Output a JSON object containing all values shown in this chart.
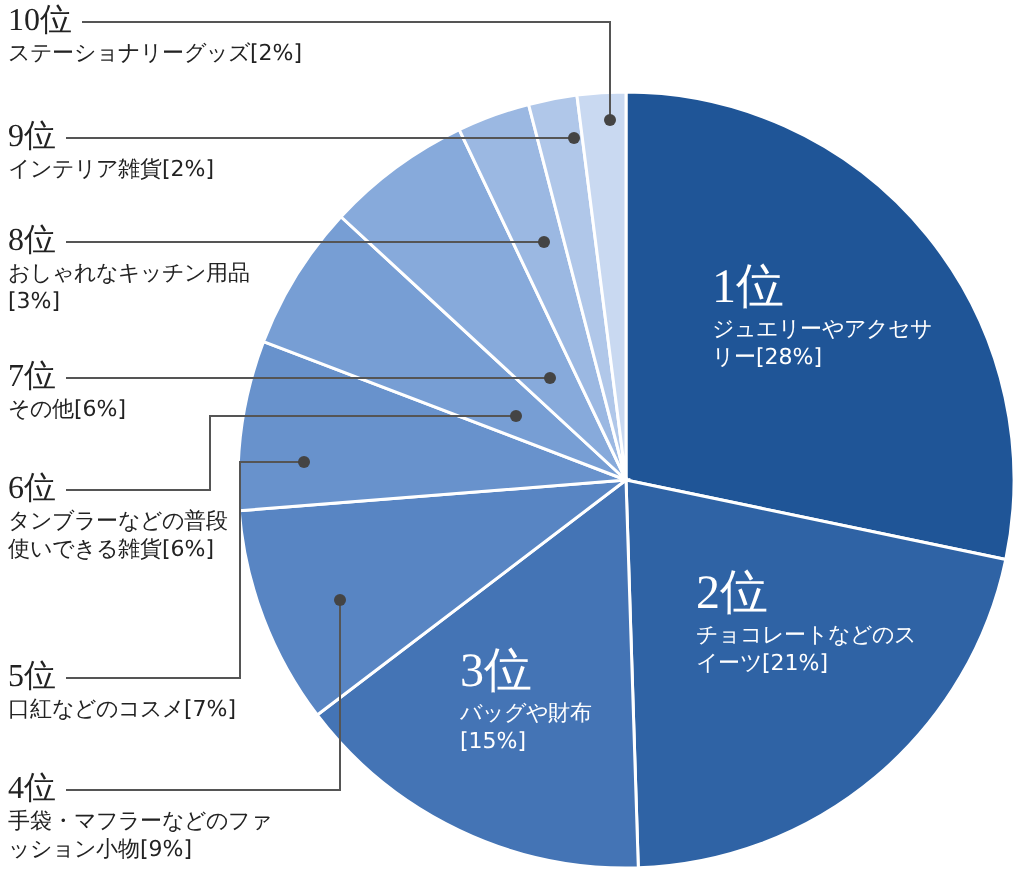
{
  "chart_data": {
    "type": "pie",
    "categories": [
      "ジュエリーやアクセサリー",
      "チョコレートなどのスイーツ",
      "バッグや財布",
      "手袋・マフラーなどのファッション小物",
      "口紅などのコスメ",
      "タンブラーなどの普段使いできる雑貨",
      "その他",
      "おしゃれなキッチン用品",
      "インテリア雑貨",
      "ステーショナリーグッズ"
    ],
    "values": [
      28,
      21,
      15,
      9,
      7,
      6,
      6,
      3,
      2,
      2
    ],
    "value_labels": [
      "[28%]",
      "[21%]",
      "[15%]",
      "[9%]",
      "[7%]",
      "[6%]",
      "[6%]",
      "[3%]",
      "[2%]",
      "[2%]"
    ],
    "colors": [
      "#1f5597",
      "#2f63a5",
      "#4474b5",
      "#5885c3",
      "#6892cc",
      "#779ed4",
      "#87aadb",
      "#9bb8e2",
      "#b0c7e9",
      "#c9d9f1"
    ],
    "annotations": [
      "1位",
      "2位",
      "3位",
      "4位",
      "5位",
      "6位",
      "7位",
      "8位",
      "9位",
      "10位"
    ]
  }
}
